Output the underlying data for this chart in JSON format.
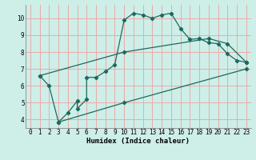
{
  "xlabel": "Humidex (Indice chaleur)",
  "xlim": [
    -0.5,
    23.5
  ],
  "ylim": [
    3.5,
    10.8
  ],
  "xticks": [
    0,
    1,
    2,
    3,
    4,
    5,
    6,
    7,
    8,
    9,
    10,
    11,
    12,
    13,
    14,
    15,
    16,
    17,
    18,
    19,
    20,
    21,
    22,
    23
  ],
  "yticks": [
    4,
    5,
    6,
    7,
    8,
    9,
    10
  ],
  "background_color": "#ceeee8",
  "grid_color": "#e8aaaa",
  "line_color": "#1a6b5e",
  "line1_x": [
    1,
    2,
    3,
    4,
    5,
    5,
    6,
    6,
    7,
    8,
    9,
    10,
    11,
    12,
    13,
    14,
    15,
    16,
    17,
    18,
    19,
    20,
    21,
    22,
    23
  ],
  "line1_y": [
    6.6,
    6.0,
    3.85,
    4.4,
    5.1,
    4.65,
    5.2,
    6.5,
    6.5,
    6.85,
    7.25,
    9.9,
    10.3,
    10.2,
    10.0,
    10.2,
    10.3,
    9.4,
    8.75,
    8.8,
    8.55,
    8.5,
    7.9,
    7.5,
    7.4
  ],
  "line2_x": [
    1,
    10,
    19,
    21,
    23
  ],
  "line2_y": [
    6.6,
    8.0,
    8.8,
    8.5,
    7.4
  ],
  "line3_x": [
    3,
    10,
    23
  ],
  "line3_y": [
    3.85,
    5.0,
    7.0
  ]
}
